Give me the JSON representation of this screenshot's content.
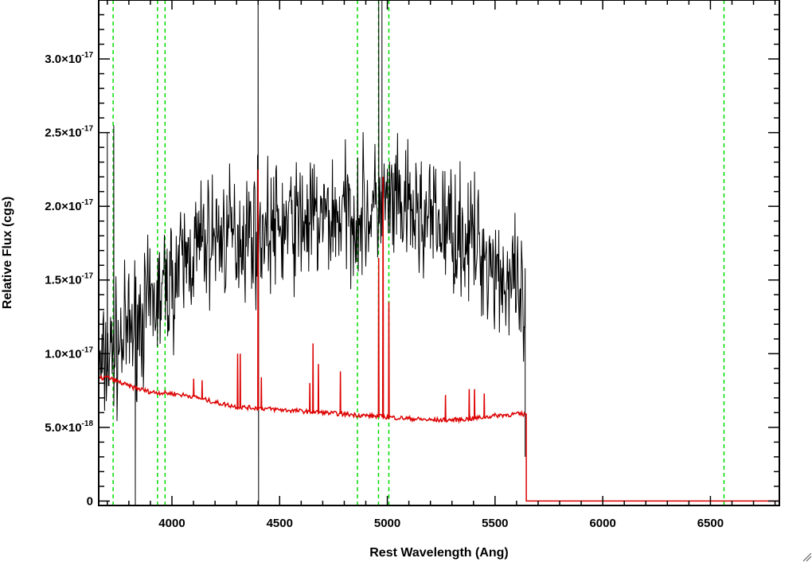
{
  "chart_data": {
    "type": "line",
    "title": "",
    "xlabel": "Rest Wavelength (Ang)",
    "ylabel": "Relative Flux (cgs)",
    "xlim": [
      3660,
      6820
    ],
    "ylim": [
      -3e-19,
      3.4e-17
    ],
    "x_ticks": [
      {
        "value": 4000,
        "label": "4000"
      },
      {
        "value": 4500,
        "label": "4500"
      },
      {
        "value": 5000,
        "label": "5000"
      },
      {
        "value": 5500,
        "label": "5500"
      },
      {
        "value": 6000,
        "label": "6000"
      },
      {
        "value": 6500,
        "label": "6500"
      }
    ],
    "y_ticks": [
      {
        "value": 0,
        "mantissa": "0",
        "exponent": ""
      },
      {
        "value": 5e-18,
        "mantissa": "5.0×10",
        "exponent": "-18"
      },
      {
        "value": 1e-17,
        "mantissa": "1.0×10",
        "exponent": "-17"
      },
      {
        "value": 1.5e-17,
        "mantissa": "1.5×10",
        "exponent": "-17"
      },
      {
        "value": 2e-17,
        "mantissa": "2.0×10",
        "exponent": "-17"
      },
      {
        "value": 2.5e-17,
        "mantissa": "2.5×10",
        "exponent": "-17"
      },
      {
        "value": 3e-17,
        "mantissa": "3.0×10",
        "exponent": "-17"
      }
    ],
    "x_minor_step": 100,
    "y_minor_step": 1e-18,
    "grid": false,
    "reference_lines": {
      "color": "#00dd00",
      "style": "dashed",
      "x": [
        3727,
        3933,
        3968,
        4861,
        4959,
        5007,
        6563
      ]
    },
    "series": [
      {
        "color": "#000000",
        "style": "noisy observed spectrum",
        "x": [
          3660,
          3700,
          3750,
          3800,
          3850,
          3900,
          3950,
          4000,
          4050,
          4100,
          4150,
          4200,
          4300,
          4400,
          4500,
          4600,
          4700,
          4800,
          4900,
          5000,
          5100,
          5200,
          5300,
          5400,
          5500,
          5550,
          5600,
          5640
        ],
        "y": [
          8.5e-18,
          9.5e-18,
          1.05e-17,
          1.15e-17,
          1.25e-17,
          1.3e-17,
          1.4e-17,
          1.5e-17,
          1.6e-17,
          1.7e-17,
          1.75e-17,
          1.8e-17,
          1.8e-17,
          1.85e-17,
          1.85e-17,
          1.9e-17,
          1.9e-17,
          1.95e-17,
          1.95e-17,
          2e-17,
          1.95e-17,
          1.9e-17,
          1.85e-17,
          1.75e-17,
          1.6e-17,
          1.5e-17,
          1.4e-17,
          1.25e-17
        ],
        "noise_amplitude": 4e-18,
        "spikes": [
          {
            "x": 3700,
            "y": 2.5e-17
          },
          {
            "x": 3730,
            "y": 2.55e-17
          },
          {
            "x": 3830,
            "y": -3e-19
          },
          {
            "x": 4400,
            "y": 3.6e-17
          },
          {
            "x": 4402,
            "y": -3e-19
          },
          {
            "x": 4960,
            "y": 3.6e-17
          },
          {
            "x": 4975,
            "y": 3.6e-17
          }
        ]
      },
      {
        "color": "#dd0000",
        "style": "model spectrum",
        "x": [
          3660,
          3700,
          3800,
          3900,
          4000,
          4100,
          4200,
          4300,
          4400,
          4500,
          4600,
          4700,
          4800,
          4900,
          5000,
          5100,
          5200,
          5300,
          5400,
          5500,
          5600,
          5640,
          5645,
          5660,
          6820
        ],
        "y": [
          8.3e-18,
          8.4e-18,
          7.8e-18,
          7.4e-18,
          7.3e-18,
          7.1e-18,
          6.7e-18,
          6.4e-18,
          6.3e-18,
          6.2e-18,
          6.1e-18,
          6e-18,
          5.9e-18,
          5.8e-18,
          5.7e-18,
          5.6e-18,
          5.5e-18,
          5.5e-18,
          5.6e-18,
          5.8e-18,
          5.9e-18,
          5.9e-18,
          0,
          0,
          0
        ],
        "emission_lines": [
          {
            "x": 4101,
            "y": 8.3e-18
          },
          {
            "x": 4140,
            "y": 8.2e-18
          },
          {
            "x": 4305,
            "y": 1e-17
          },
          {
            "x": 4317,
            "y": 1e-17
          },
          {
            "x": 4400,
            "y": 2.25e-17
          },
          {
            "x": 4415,
            "y": 8.4e-18
          },
          {
            "x": 4640,
            "y": 8e-18
          },
          {
            "x": 4655,
            "y": 1.07e-17
          },
          {
            "x": 4680,
            "y": 9.3e-18
          },
          {
            "x": 4782,
            "y": 8.8e-18
          },
          {
            "x": 4960,
            "y": 1.65e-17
          },
          {
            "x": 4980,
            "y": 2.2e-17
          },
          {
            "x": 5007,
            "y": 1.35e-17
          },
          {
            "x": 5270,
            "y": 7.2e-18
          },
          {
            "x": 5380,
            "y": 7.6e-18
          },
          {
            "x": 5405,
            "y": 7.6e-18
          },
          {
            "x": 5450,
            "y": 7.3e-18
          }
        ]
      }
    ]
  }
}
